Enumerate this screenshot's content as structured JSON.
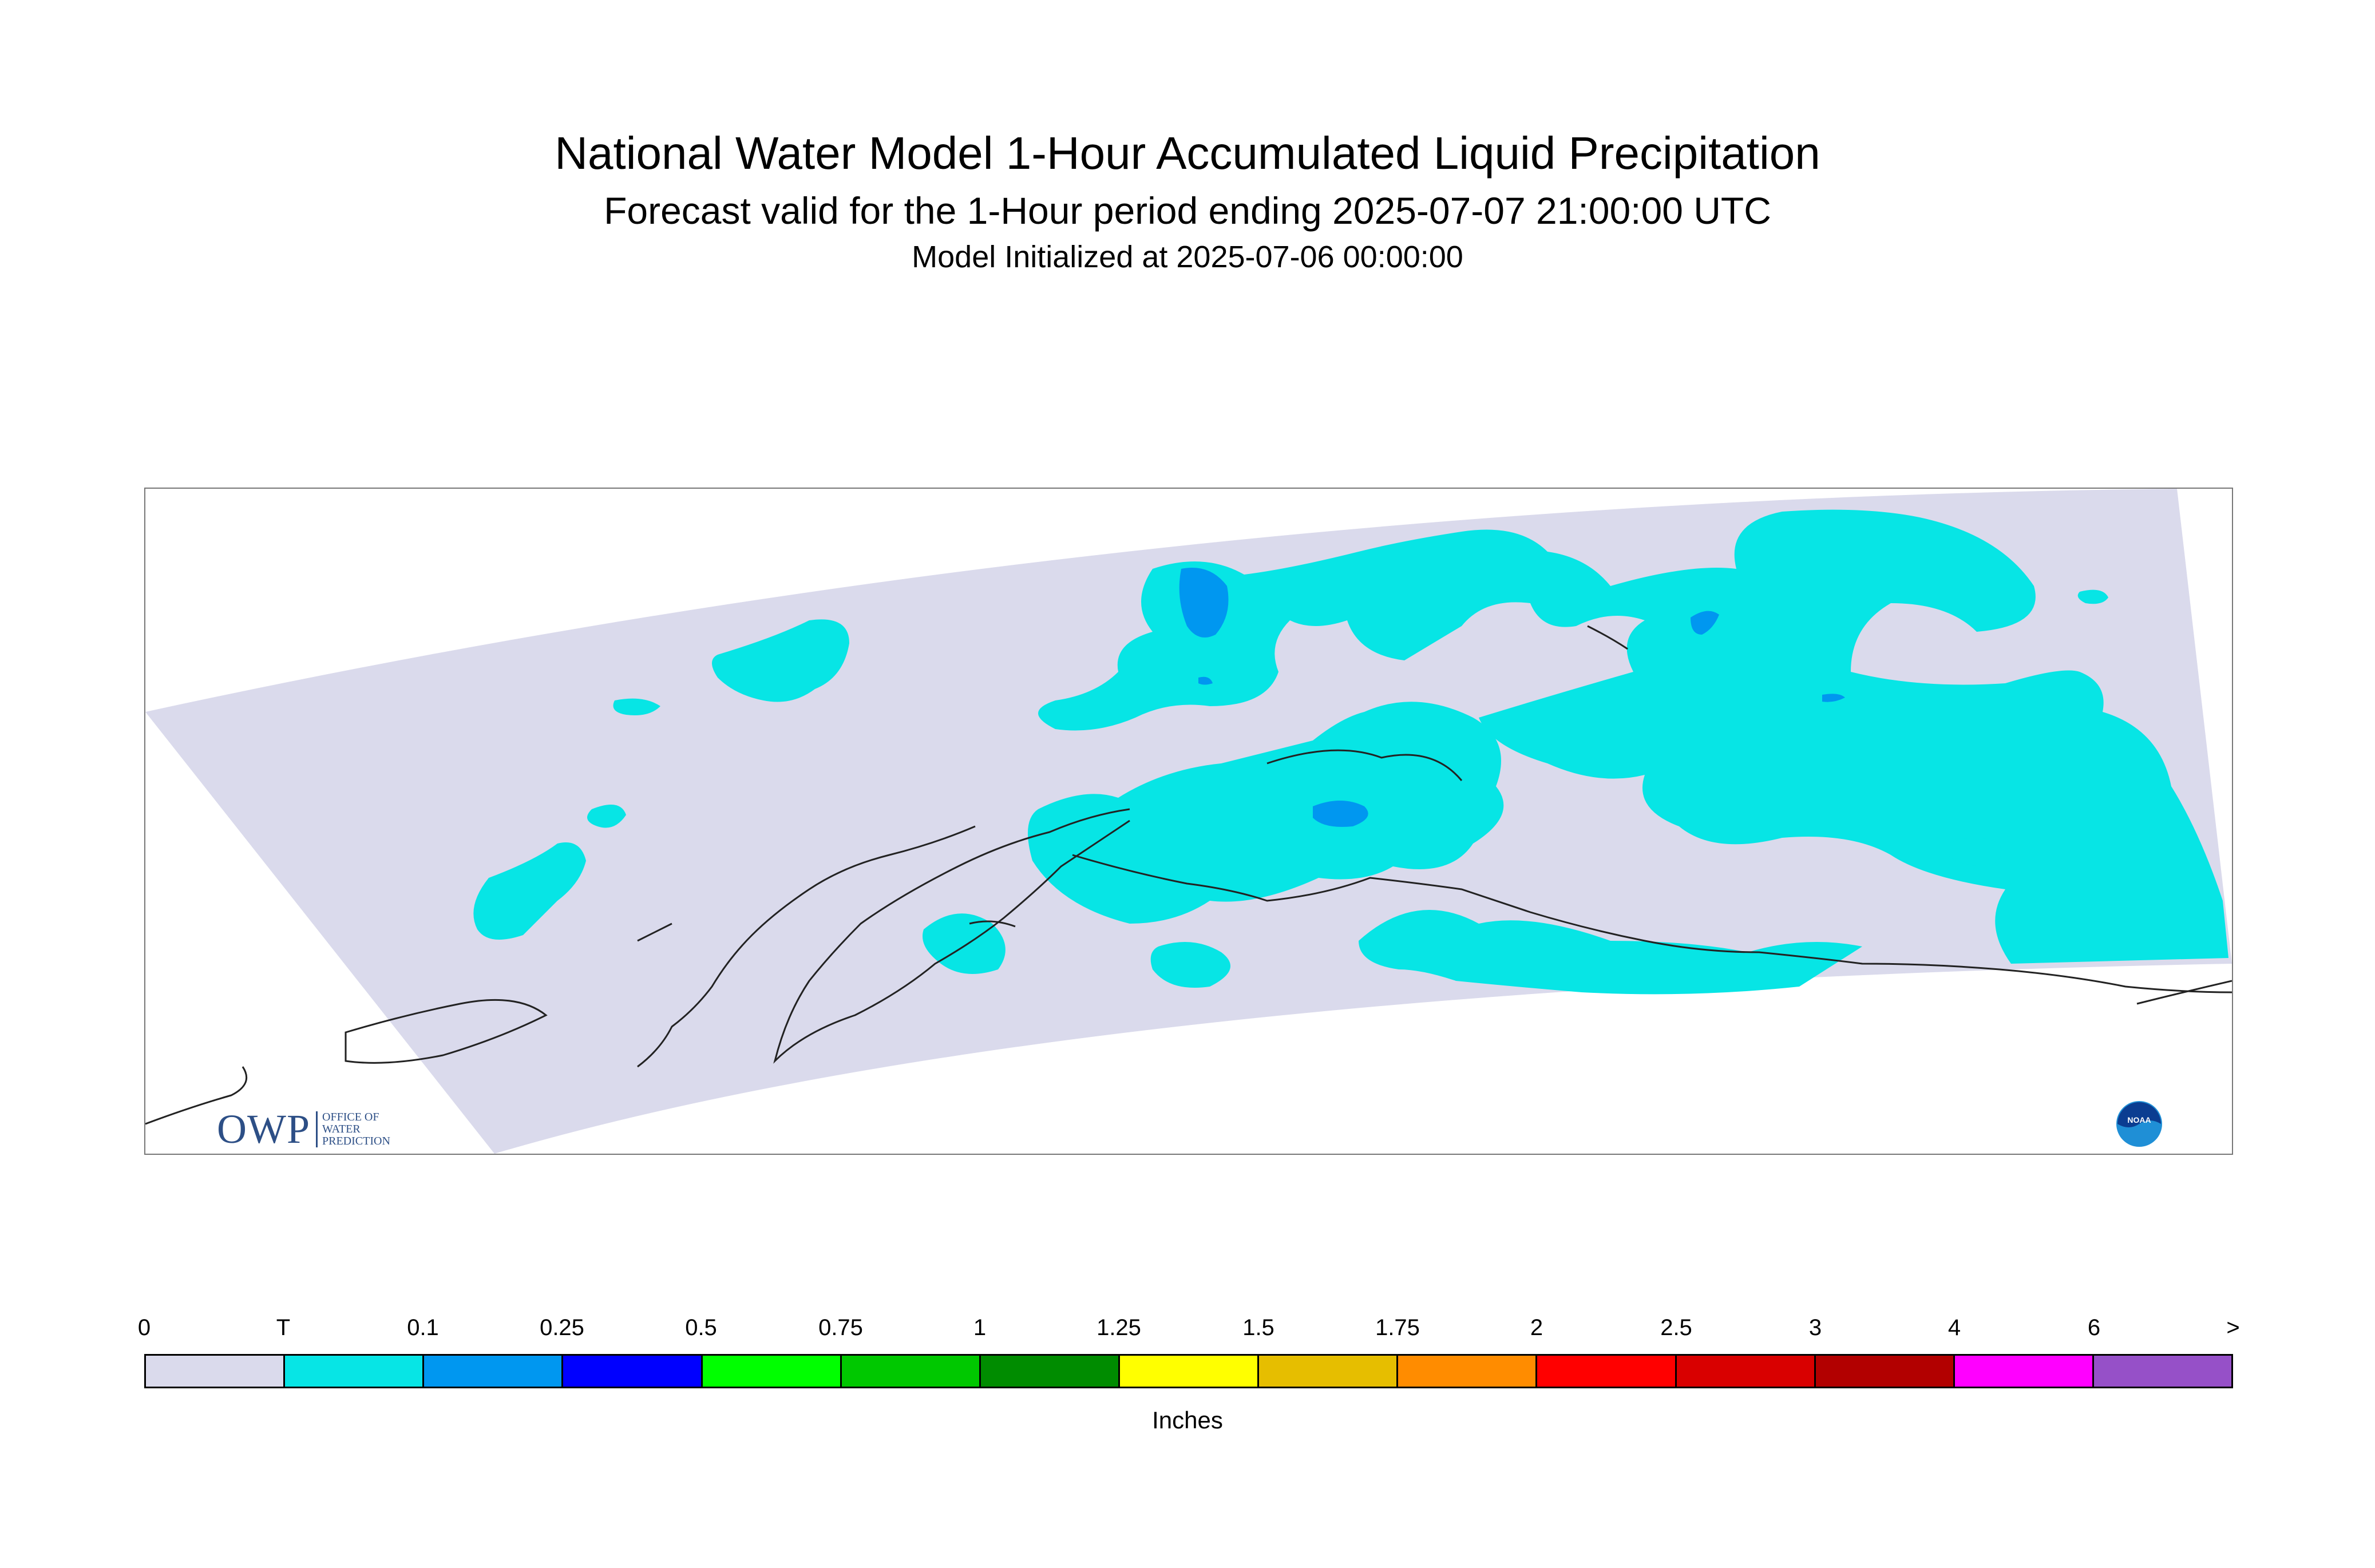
{
  "title": {
    "main": "National Water Model 1-Hour Accumulated Liquid Precipitation",
    "forecast": "Forecast valid for the 1-Hour period ending 2025-07-07 21:00:00 UTC",
    "initialized": "Model Initialized at 2025-07-06 00:00:00"
  },
  "colors": {
    "domain_fill": "#dadaec",
    "trace": "#07e5e5",
    "light_blue": "#0097f0",
    "coastline": "#222222"
  },
  "logos": {
    "owp_letters": "OWP",
    "owp_subtitle": [
      "OFFICE OF",
      "WATER",
      "PREDICTION"
    ],
    "noaa": "NOAA"
  },
  "legend": {
    "labels": [
      "0",
      "T",
      "0.1",
      "0.25",
      "0.5",
      "0.75",
      "1",
      "1.25",
      "1.5",
      "1.75",
      "2",
      "2.5",
      "3",
      "4",
      "6",
      ">"
    ],
    "colors": [
      "#dadaec",
      "#07e5e5",
      "#0097f0",
      "#0000ff",
      "#00ff00",
      "#00c800",
      "#008c00",
      "#ffff00",
      "#e6be00",
      "#ff8c00",
      "#ff0000",
      "#d90000",
      "#b20000",
      "#ff00ff",
      "#9650c8"
    ],
    "units": "Inches"
  }
}
